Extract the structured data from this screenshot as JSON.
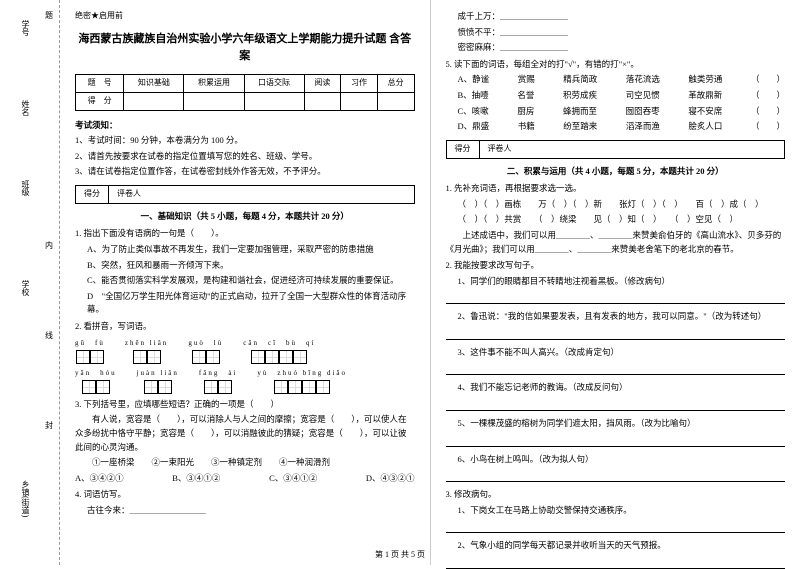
{
  "margin": {
    "labels": [
      "学号",
      "姓名",
      "班级",
      "学校",
      "乡镇(街道)"
    ],
    "side_chars": [
      "题",
      "内",
      "线",
      "封"
    ]
  },
  "header_note": "绝密★启用前",
  "title": "海西蒙古族藏族自治州实验小学六年级语文上学期能力提升试题 含答案",
  "score_table": {
    "row1": [
      "题　号",
      "知识基础",
      "积累运用",
      "口语交际",
      "阅读",
      "习作",
      "总分"
    ],
    "row2": [
      "得　分",
      "",
      "",
      "",
      "",
      "",
      ""
    ]
  },
  "notice_title": "考试须知：",
  "notices": [
    "1、考试时间：90 分钟，本卷满分为 100 分。",
    "2、请首先按要求在试卷的指定位置填写您的姓名、班级、学号。",
    "3、请在试卷指定位置作答，在试卷密封线外作答无效，不予评分。"
  ],
  "section_box": {
    "score": "得分",
    "reviewer": "评卷人"
  },
  "section1_title": "一、基础知识（共 5 小题，每题 4 分，本题共计 20 分）",
  "q1": {
    "stem": "1. 指出下面没有语病的一句是（　　）。",
    "opts": [
      "A、为了防止类似事故不再发生，我们一定要加强管理，采取严密的防患措施",
      "B、突然，狂风和暴雨一齐倾泻下来。",
      "C、能否贯彻落实科学发展观，是构建和谐社会，促进经济可持续发展的重要保证。",
      "D　\"全国亿万学生阳光体育运动\"的正式启动，拉开了全国一大型群众性的体育活动序幕。"
    ]
  },
  "q2": {
    "stem": "2. 看拼音，写词语。",
    "row1": [
      {
        "py": "gū　fù",
        "n": 2
      },
      {
        "py": "zhēn liǎn",
        "n": 2
      },
      {
        "py": "guò　lù",
        "n": 2
      },
      {
        "py": "cān　cī　bù　qí",
        "n": 4
      }
    ],
    "row2": [
      {
        "py": "yān　hóu",
        "n": 2
      },
      {
        "py": "juàn liǎn",
        "n": 2
      },
      {
        "py": "fǎng　ài",
        "n": 2
      },
      {
        "py": "yù　zhuó bīng diāo",
        "n": 4
      }
    ]
  },
  "q3": {
    "stem": "3. 下列括号里，应填哪些短语？正确的一项是（　　）",
    "text": "　　有人说，宽容是（　　），可以消除人与人之间的摩擦；宽容是（　　），可以使人在众多纷扰中恪守平静；宽容是（　　），可以消融彼此的猜疑；宽容是（　　），可以让彼此间的心灵沟通。",
    "items": "　　①一座桥梁　　②一束阳光　　③一种镇定剂　　④一种润滑剂",
    "opts": [
      "A、③④②①",
      "B、③④①②",
      "C、③④①②",
      "D、④③②①"
    ]
  },
  "q4": {
    "stem": "4. 词语仿写。",
    "line": "古往今来：＿＿＿＿＿＿＿＿＿"
  },
  "right_lines": [
    "成千上万：＿＿＿＿＿＿＿＿",
    "愤愤不平：＿＿＿＿＿＿＿＿",
    "密密麻麻：＿＿＿＿＿＿＿＿"
  ],
  "q5": {
    "stem": "5. 读下面的词语，每组全对的打\"√\"，有错的打\"×\"。",
    "rows": [
      [
        "A、静谧",
        "赏赐",
        "精兵简政",
        "落花流选",
        "触类劳通",
        "（　　）"
      ],
      [
        "B、抽噎",
        "名誉",
        "积劳成疾",
        "司空见惯",
        "革故鼎新",
        "（　　）"
      ],
      [
        "C、咳嗽",
        "厨房",
        "蜂拥而至",
        "囫囵吞枣",
        "寝不安席",
        "（　　）"
      ],
      [
        "D、鼎盛",
        "书籍",
        "纷至踏来",
        "滔泽而渔",
        "脍炙人口",
        "（　　）"
      ]
    ]
  },
  "section2_title": "二、积累与运用（共 4 小题，每题 5 分，本题共计 20 分）",
  "s2q1": {
    "stem": "1. 先补充词语，再根据要求选一选。",
    "line1": "（　）（　）画栋　　万（　）（　）新　　张灯（　）（　）　　百（　）成（　）",
    "line2": "（　）（　）共赏　　（　）绕梁　　见（　）知（　）　　（　）空见（　）",
    "para": "　　上述成语中，我们可以用＿＿＿＿、＿＿＿＿来赞美俞伯牙的《高山流水》、贝多芬的《月光曲》；我们可以用＿＿＿＿、＿＿＿＿来赞美老舍笔下的老北京的春节。"
  },
  "s2q2": {
    "stem": "2. 我能按要求改写句子。",
    "items": [
      "1、同学们的眼睛都目不转睛地注视着黑板。（修改病句）",
      "2、鲁迅说：\"我的信如果要发表，且有发表的地方，我可以同意。\"（改为转述句）",
      "3、这件事不能不叫人高兴。（改成肯定句）",
      "4、我们不能忘记老师的教诲。（改成反问句）",
      "5、一棵棵茂盛的榕树为同学们遮太阳，挡风雨。（改为比喻句）",
      "6、小鸟在树上鸣叫。（改为拟人句）"
    ]
  },
  "s2q3": {
    "stem": "3. 修改病句。",
    "items": [
      "1、下岗女工在马路上协助交警保持交通秩序。",
      "2、气象小组的同学每天都记录并收听当天的天气预报。"
    ]
  },
  "footer": "第 1 页 共 5 页"
}
